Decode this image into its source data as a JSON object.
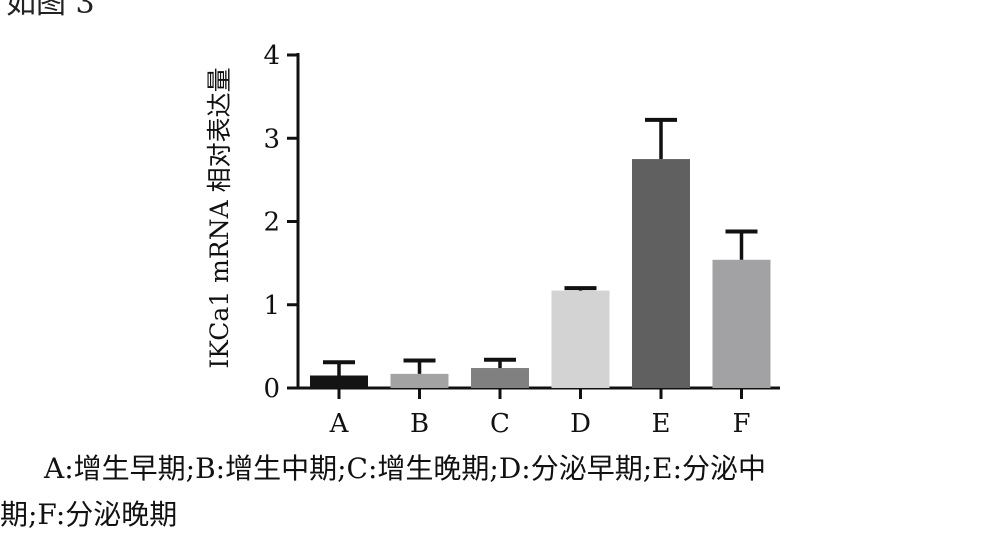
{
  "top_text": "如图 3",
  "chart_data": {
    "type": "bar",
    "title": "",
    "xlabel": "",
    "ylabel": "IKCa1 mRNA 相对表达量",
    "ylim": [
      0,
      4
    ],
    "yticks": [
      "0",
      "1",
      "2",
      "3",
      "4"
    ],
    "categories": [
      "A",
      "B",
      "C",
      "D",
      "E",
      "F"
    ],
    "values": [
      0.15,
      0.17,
      0.24,
      1.17,
      2.75,
      1.54
    ],
    "errors": [
      0.16,
      0.16,
      0.1,
      0.03,
      0.47,
      0.34
    ],
    "colors": [
      "#141414",
      "#a3a3a3",
      "#808080",
      "#d3d3d3",
      "#606060",
      "#a2a2a4"
    ],
    "grid": false
  },
  "caption": {
    "line1": "A:增生早期;B:增生中期;C:增生晚期;D:分泌早期;E:分泌中",
    "line2": "期;F:分泌晚期"
  }
}
